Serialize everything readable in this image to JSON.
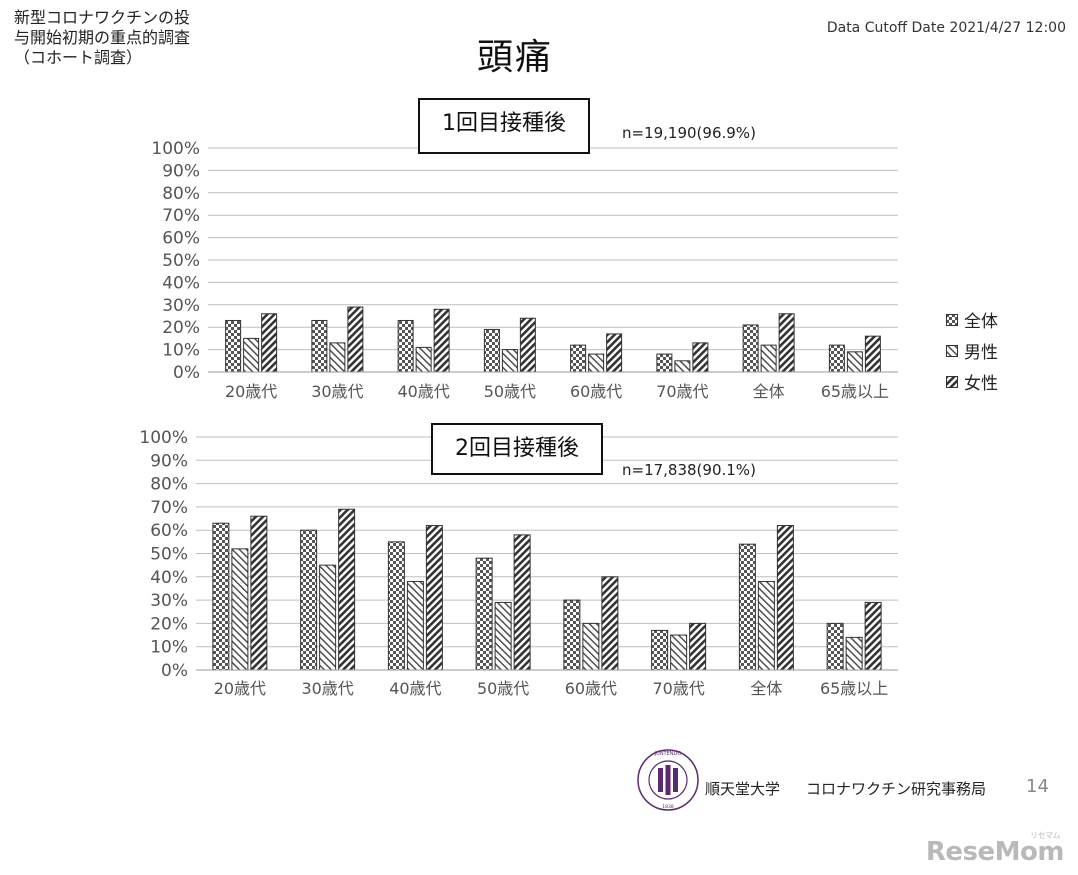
{
  "header": {
    "study_title_lines": [
      "新型コロナワクチンの投",
      "与開始初期の重点的調査",
      "（コホート調査）"
    ],
    "cutoff": "Data Cutoff Date 2021/4/27 12:00",
    "title": "頭痛"
  },
  "legend": [
    "全体",
    "男性",
    "女性"
  ],
  "colors": {
    "axis": "#bfbfbf",
    "bar_outline": "#333333",
    "bar_dark": "#666666",
    "bar_mid": "#8a8a8a"
  },
  "chart_data": [
    {
      "type": "bar",
      "title": "1回目接種後",
      "annotation": "n=19,190(96.9%)",
      "categories": [
        "20歳代",
        "30歳代",
        "40歳代",
        "50歳代",
        "60歳代",
        "70歳代",
        "全体",
        "65歳以上"
      ],
      "series": [
        {
          "name": "全体",
          "values": [
            23,
            23,
            23,
            19,
            12,
            8,
            21,
            12
          ]
        },
        {
          "name": "男性",
          "values": [
            15,
            13,
            11,
            10,
            8,
            5,
            12,
            9
          ]
        },
        {
          "name": "女性",
          "values": [
            26,
            29,
            28,
            24,
            17,
            13,
            26,
            16
          ]
        }
      ],
      "yticks": [
        "0%",
        "10%",
        "20%",
        "30%",
        "40%",
        "50%",
        "60%",
        "70%",
        "80%",
        "90%",
        "100%"
      ],
      "ylim": [
        0,
        100
      ],
      "grid": true,
      "legend_position": "right"
    },
    {
      "type": "bar",
      "title": "2回目接種後",
      "annotation": "n=17,838(90.1%)",
      "categories": [
        "20歳代",
        "30歳代",
        "40歳代",
        "50歳代",
        "60歳代",
        "70歳代",
        "全体",
        "65歳以上"
      ],
      "series": [
        {
          "name": "全体",
          "values": [
            63,
            60,
            55,
            48,
            30,
            17,
            54,
            20
          ]
        },
        {
          "name": "男性",
          "values": [
            52,
            45,
            38,
            29,
            20,
            15,
            38,
            14
          ]
        },
        {
          "name": "女性",
          "values": [
            66,
            69,
            62,
            58,
            40,
            20,
            62,
            29
          ]
        }
      ],
      "yticks": [
        "0%",
        "10%",
        "20%",
        "30%",
        "40%",
        "50%",
        "60%",
        "70%",
        "80%",
        "90%",
        "100%"
      ],
      "ylim": [
        0,
        100
      ],
      "grid": true,
      "legend_position": "none"
    }
  ],
  "footer": {
    "university": "順天堂大学",
    "office": "コロナワクチン研究事務局",
    "page": "14",
    "logo_text": "JUNTENDO UNIVERSITY TOKYO",
    "logo_year": "1838"
  },
  "watermark": "ReseMom",
  "watermark_small": "リセマム"
}
